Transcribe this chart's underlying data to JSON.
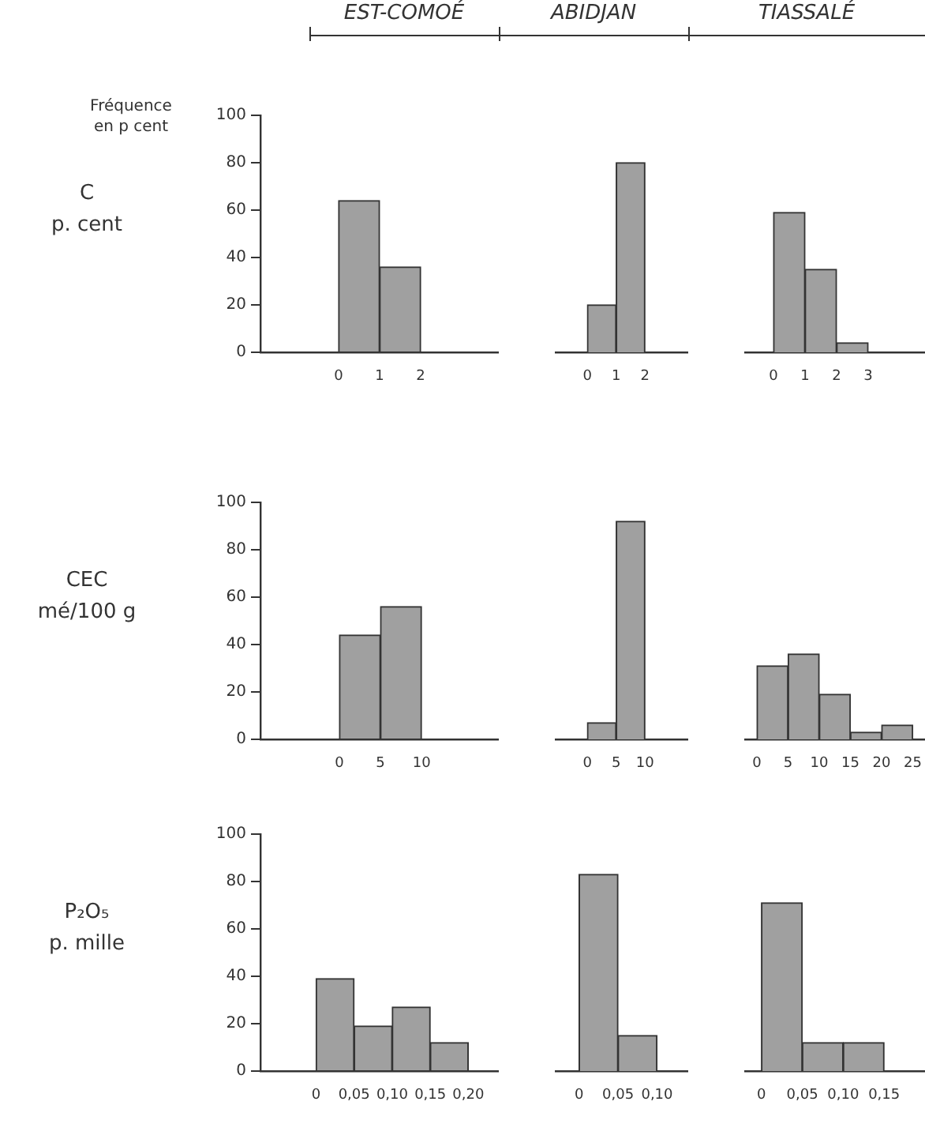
{
  "chart_data": [
    {
      "type": "histogram",
      "title": "EST-COMOÉ",
      "ylabel": "Fréquence en p cent",
      "xlabel": "C p. cent",
      "bins": [
        0,
        1,
        2
      ],
      "values": [
        64,
        36
      ],
      "color": "#a0a0a0",
      "xlim": [
        -1.9,
        3.9
      ],
      "xticks": [
        0,
        1,
        2
      ],
      "ylim": [
        0,
        100
      ],
      "yticks": [
        0,
        20,
        40,
        60,
        80,
        100
      ]
    },
    {
      "type": "histogram",
      "title": "ABIDJAN",
      "bins": [
        0,
        1,
        2
      ],
      "values": [
        20,
        80
      ],
      "color": "#a0a0a0",
      "xlim": [
        -1.1,
        3.5
      ],
      "xticks": [
        0,
        1,
        2
      ],
      "ylim": [
        0,
        100
      ],
      "tick_labels": "x"
    },
    {
      "type": "histogram",
      "title": "TIASSALÉ",
      "bins": [
        0,
        1,
        2,
        3
      ],
      "values": [
        59,
        35,
        4
      ],
      "color": "#a0a0a0",
      "xlim": [
        -0.9,
        4.8
      ],
      "xticks": [
        0,
        1,
        2,
        3
      ],
      "ylim": [
        0,
        100
      ],
      "tick_labels": "x"
    },
    {
      "type": "histogram",
      "xlabel": "CEC mé/100 g",
      "bins": [
        0,
        5,
        10
      ],
      "values": [
        44,
        56
      ],
      "color": "#a0a0a0",
      "xlim": [
        -9.6,
        19.4
      ],
      "xticks": [
        0,
        5,
        10
      ],
      "ylim": [
        0,
        100
      ],
      "yticks": [
        0,
        20,
        40,
        60,
        80,
        100
      ]
    },
    {
      "type": "histogram",
      "bins": [
        0,
        5,
        10
      ],
      "values": [
        7,
        92
      ],
      "color": "#a0a0a0",
      "xlim": [
        -5.5,
        17.5
      ],
      "xticks": [
        0,
        5,
        10
      ],
      "ylim": [
        0,
        100
      ],
      "tick_labels": "x"
    },
    {
      "type": "histogram",
      "bins": [
        0,
        5,
        10,
        15,
        20,
        25
      ],
      "values": [
        31,
        36,
        19,
        3,
        6
      ],
      "color": "#a0a0a0",
      "xlim": [
        -1.9,
        26.9
      ],
      "xticks": [
        0,
        5,
        10,
        15,
        20,
        25
      ],
      "ylim": [
        0,
        100
      ],
      "tick_labels": "x"
    },
    {
      "type": "histogram",
      "xlabel": "P₂O₅ p. mille",
      "bins": [
        0,
        0.05,
        0.1,
        0.15,
        0.2
      ],
      "values": [
        39,
        19,
        27,
        12
      ],
      "color": "#a0a0a0",
      "xlim": [
        -0.073,
        0.24
      ],
      "xticks": [
        0,
        {
          "value": 0.05,
          "label": "0,05"
        },
        {
          "value": 0.1,
          "label": "0,10"
        },
        {
          "value": 0.15,
          "label": "0,15"
        },
        {
          "value": 0.2,
          "label": "0,20"
        }
      ],
      "ylim": [
        0,
        100
      ],
      "yticks": [
        0,
        20,
        40,
        60,
        80,
        100
      ]
    },
    {
      "type": "histogram",
      "bins": [
        0,
        0.05,
        0.1
      ],
      "values": [
        83,
        15
      ],
      "color": "#a0a0a0",
      "xlim": [
        -0.03,
        0.14
      ],
      "xticks": [
        0,
        {
          "value": 0.05,
          "label": "0,05"
        },
        {
          "value": 0.1,
          "label": "0,10"
        }
      ],
      "ylim": [
        0,
        100
      ],
      "tick_labels": "x"
    },
    {
      "type": "histogram",
      "bins": [
        0,
        0.05,
        0.1,
        0.15
      ],
      "values": [
        71,
        12,
        12
      ],
      "color": "#a0a0a0",
      "xlim": [
        -0.02,
        0.2
      ],
      "xticks": [
        0,
        {
          "value": 0.05,
          "label": "0,05"
        },
        {
          "value": 0.1,
          "label": "0,10"
        },
        {
          "value": 0.15,
          "label": "0,15"
        }
      ],
      "ylim": [
        0,
        100
      ],
      "tick_labels": "x"
    }
  ]
}
